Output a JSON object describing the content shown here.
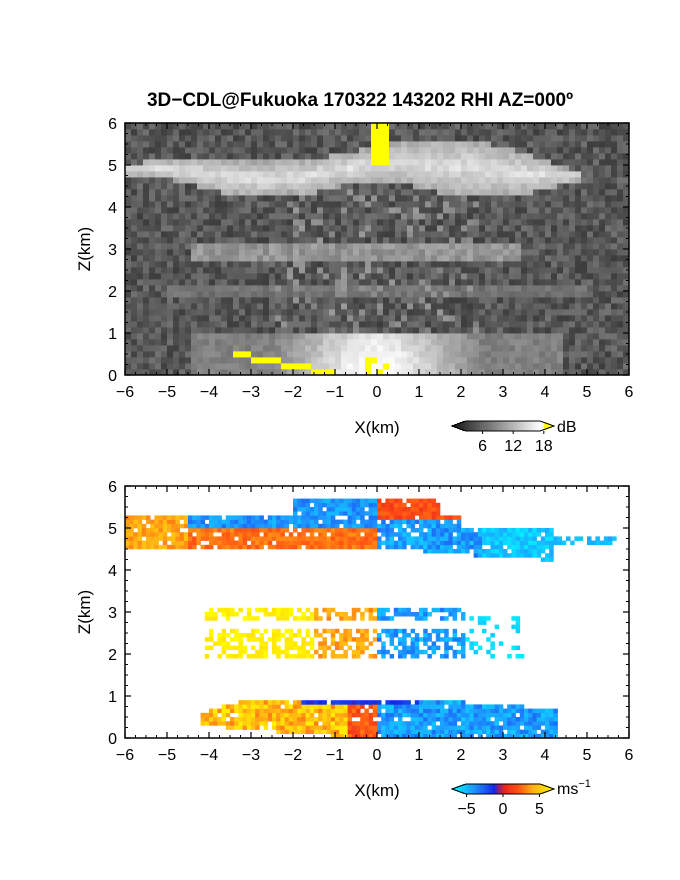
{
  "title": "3D−CDL@Fukuoka 170322 143202 RHI AZ=000º",
  "chart_data": [
    {
      "type": "heatmap",
      "panel": "top",
      "quantity": "backscatter intensity",
      "xlabel": "X(km)",
      "ylabel": "Z(km)",
      "xlim": [
        -6,
        6
      ],
      "ylim": [
        0,
        6
      ],
      "xticks": [
        "−6",
        "−5",
        "−4",
        "−3",
        "−2",
        "−1",
        "0",
        "1",
        "2",
        "3",
        "4",
        "5",
        "6"
      ],
      "yticks": [
        "0",
        "1",
        "2",
        "3",
        "4",
        "5",
        "6"
      ],
      "colorbar": {
        "unit": "dB",
        "ticks": [
          "6",
          "12",
          "18"
        ],
        "range": [
          0,
          20
        ],
        "colormap": "grayscale-to-yellow"
      },
      "features": [
        {
          "name": "upper cloud layer",
          "z_range_km": [
            4.3,
            5.7
          ],
          "x_range_km": [
            -6,
            6
          ],
          "level_db": 13
        },
        {
          "name": "strong return at zenith",
          "x_km": 0.05,
          "z_range_km": [
            5.0,
            6.0
          ],
          "level_db": 19
        },
        {
          "name": "mid aerosol layer",
          "z_range_km": [
            2.7,
            3.1
          ],
          "x_range_km": [
            -4.5,
            3.5
          ],
          "level_db": 9
        },
        {
          "name": "boundary layer",
          "z_range_km": [
            0,
            1.0
          ],
          "x_range_km": [
            -4.5,
            4.5
          ],
          "level_db": 12
        },
        {
          "name": "ground clutter (low-elevation edge)",
          "x_range_km": [
            -3.5,
            -1.0
          ],
          "z_range_km": [
            0.0,
            0.5
          ],
          "level_db": 19
        }
      ]
    },
    {
      "type": "heatmap",
      "panel": "bottom",
      "quantity": "radial velocity",
      "xlabel": "X(km)",
      "ylabel": "Z(km)",
      "xlim": [
        -6,
        6
      ],
      "ylim": [
        0,
        6
      ],
      "xticks": [
        "−6",
        "−5",
        "−4",
        "−3",
        "−2",
        "−1",
        "0",
        "1",
        "2",
        "3",
        "4",
        "5",
        "6"
      ],
      "yticks": [
        "0",
        "1",
        "2",
        "3",
        "4",
        "5",
        "6"
      ],
      "colorbar": {
        "unit": "ms",
        "unit_exp": "−1",
        "ticks": [
          "−5",
          "0",
          "5"
        ],
        "range": [
          -7,
          7
        ],
        "colormap": "cyan-blue-red-yellow"
      },
      "features": [
        {
          "name": "upper cloud layer west (receding)",
          "x_range_km": [
            -6,
            0
          ],
          "z_range_km": [
            4.4,
            5.5
          ],
          "velocity": 2
        },
        {
          "name": "upper cloud layer east (approaching)",
          "x_range_km": [
            0,
            5.2
          ],
          "z_range_km": [
            4.2,
            5.8
          ],
          "velocity": -3
        },
        {
          "name": "mid layer west",
          "x_range_km": [
            -4.1,
            0
          ],
          "z_range_km": [
            1.9,
            3.2
          ],
          "velocity": 5
        },
        {
          "name": "mid layer east",
          "x_range_km": [
            0,
            3.5
          ],
          "z_range_km": [
            1.9,
            3.0
          ],
          "velocity": -4
        },
        {
          "name": "boundary layer west",
          "x_range_km": [
            -4.2,
            0
          ],
          "z_range_km": [
            0,
            1.0
          ],
          "velocity": 4
        },
        {
          "name": "boundary layer east",
          "x_range_km": [
            0,
            4.3
          ],
          "z_range_km": [
            0,
            0.8
          ],
          "velocity": -4
        }
      ]
    }
  ]
}
